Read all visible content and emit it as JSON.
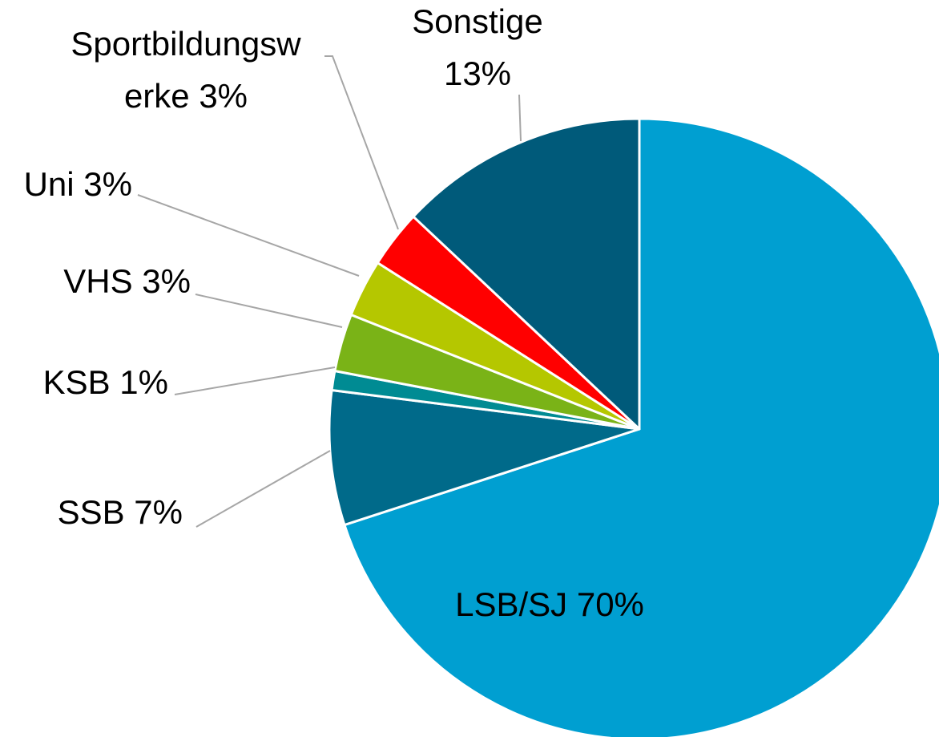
{
  "chart_data": {
    "type": "pie",
    "categories": [
      "LSB/SJ",
      "SSB",
      "KSB",
      "VHS",
      "Uni",
      "Sportbildungswerke",
      "Sonstige"
    ],
    "values": [
      70,
      7,
      1,
      3,
      3,
      3,
      13
    ],
    "value_labels": [
      "70%",
      "7%",
      "1%",
      "3%",
      "3%",
      "3%",
      "13%"
    ],
    "colors": [
      "#009fd1",
      "#006a8a",
      "#008b93",
      "#7ab317",
      "#b5c700",
      "#ff0000",
      "#005a7a"
    ]
  }
}
